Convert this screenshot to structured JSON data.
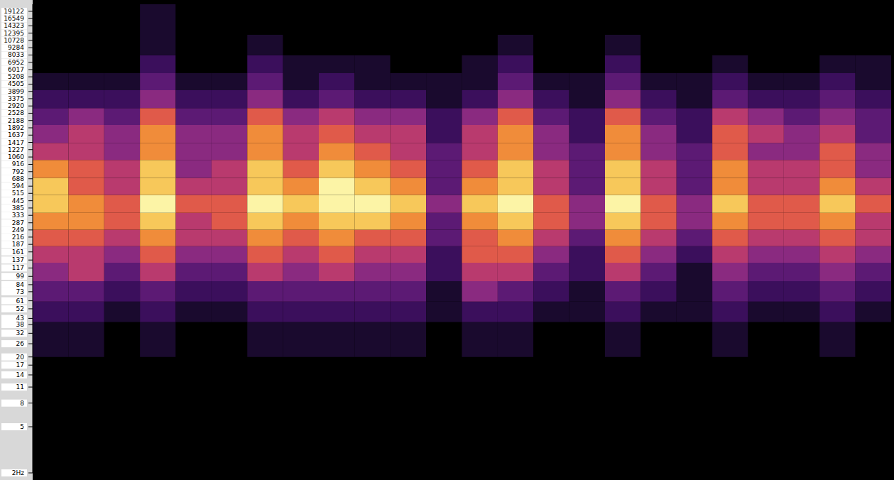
{
  "chart_data": {
    "type": "heatmap",
    "log": "y",
    "grid": false,
    "tick_labels": "y",
    "xlim": [
      0,
      24
    ],
    "ylim": [
      2,
      22000
    ],
    "yticks": [
      {
        "value": 19122,
        "label": "19122"
      },
      16549,
      14323,
      12395,
      10728,
      9284,
      8033,
      6952,
      6017,
      5208,
      4505,
      3899,
      3375,
      2920,
      2528,
      2188,
      1892,
      1637,
      1417,
      1227,
      1060,
      916,
      792,
      688,
      594,
      515,
      445,
      385,
      333,
      287,
      249,
      216,
      187,
      161,
      137,
      117,
      99,
      84,
      73,
      61,
      52,
      43,
      38,
      32,
      26,
      20,
      17,
      14,
      11,
      8,
      5,
      {
        "value": 2,
        "label": "2Hz"
      }
    ],
    "time_bins": [
      0,
      1,
      2,
      3,
      4,
      5,
      6,
      7,
      8,
      9,
      10,
      11,
      12,
      13,
      14,
      15,
      16,
      17,
      18,
      19,
      20,
      21,
      22,
      23,
      24
    ],
    "freq_bins": [
      20,
      40,
      60,
      90,
      130,
      180,
      250,
      350,
      500,
      700,
      1000,
      1400,
      2000,
      2800,
      4000,
      5600,
      8000,
      12000,
      22000
    ],
    "clim": [
      0,
      9
    ],
    "colorscale": [
      "#000000",
      "#1a0a2e",
      "#3b0f5c",
      "#5c1a74",
      "#8a2a80",
      "#b93a6e",
      "#e05a4a",
      "#f08c3a",
      "#f7c85a",
      "#fcf4a6"
    ],
    "cells": [
      [
        1,
        1,
        0,
        1,
        0,
        0,
        1,
        1,
        1,
        1,
        1,
        0,
        1,
        1,
        0,
        0,
        1,
        0,
        0,
        1,
        0,
        0,
        1,
        0
      ],
      [
        2,
        2,
        1,
        2,
        1,
        1,
        2,
        2,
        2,
        2,
        2,
        1,
        2,
        2,
        1,
        1,
        2,
        1,
        1,
        2,
        1,
        1,
        2,
        1
      ],
      [
        3,
        3,
        2,
        3,
        2,
        2,
        3,
        3,
        3,
        3,
        3,
        1,
        4,
        3,
        2,
        1,
        3,
        2,
        1,
        3,
        2,
        2,
        3,
        2
      ],
      [
        4,
        5,
        3,
        5,
        3,
        3,
        5,
        4,
        5,
        4,
        4,
        2,
        5,
        5,
        3,
        2,
        5,
        3,
        1,
        4,
        3,
        3,
        4,
        3
      ],
      [
        5,
        5,
        4,
        6,
        4,
        4,
        6,
        5,
        6,
        5,
        5,
        2,
        6,
        6,
        4,
        2,
        6,
        4,
        2,
        5,
        4,
        4,
        5,
        4
      ],
      [
        6,
        6,
        5,
        7,
        5,
        5,
        7,
        6,
        7,
        6,
        6,
        3,
        6,
        7,
        5,
        3,
        7,
        5,
        3,
        6,
        5,
        5,
        6,
        5
      ],
      [
        7,
        7,
        6,
        8,
        5,
        6,
        8,
        7,
        8,
        8,
        7,
        3,
        7,
        8,
        6,
        4,
        8,
        6,
        4,
        7,
        6,
        6,
        7,
        5
      ],
      [
        8,
        7,
        6,
        9,
        6,
        6,
        9,
        8,
        9,
        9,
        8,
        4,
        8,
        9,
        6,
        4,
        9,
        6,
        4,
        8,
        6,
        6,
        8,
        6
      ],
      [
        8,
        6,
        5,
        8,
        5,
        5,
        8,
        7,
        9,
        8,
        7,
        3,
        7,
        8,
        5,
        3,
        8,
        5,
        3,
        7,
        5,
        5,
        7,
        5
      ],
      [
        7,
        6,
        5,
        8,
        4,
        5,
        8,
        6,
        8,
        7,
        6,
        3,
        6,
        8,
        5,
        3,
        8,
        5,
        3,
        7,
        5,
        5,
        6,
        4
      ],
      [
        5,
        5,
        4,
        7,
        4,
        4,
        7,
        5,
        7,
        6,
        5,
        3,
        5,
        7,
        4,
        3,
        7,
        4,
        3,
        6,
        4,
        4,
        6,
        4
      ],
      [
        4,
        5,
        4,
        7,
        4,
        4,
        7,
        5,
        6,
        5,
        5,
        2,
        5,
        7,
        4,
        2,
        7,
        4,
        2,
        6,
        5,
        4,
        5,
        3
      ],
      [
        3,
        4,
        3,
        6,
        3,
        3,
        6,
        4,
        5,
        4,
        4,
        2,
        4,
        6,
        3,
        2,
        6,
        3,
        2,
        5,
        4,
        3,
        4,
        3
      ],
      [
        2,
        2,
        2,
        4,
        2,
        2,
        4,
        2,
        3,
        2,
        2,
        1,
        2,
        4,
        2,
        1,
        4,
        2,
        1,
        3,
        2,
        2,
        3,
        2
      ],
      [
        1,
        1,
        1,
        3,
        1,
        1,
        3,
        1,
        2,
        1,
        1,
        1,
        1,
        3,
        1,
        1,
        3,
        1,
        1,
        2,
        1,
        1,
        2,
        1
      ],
      [
        0,
        0,
        0,
        2,
        0,
        0,
        2,
        1,
        1,
        1,
        0,
        0,
        1,
        2,
        0,
        0,
        2,
        0,
        0,
        1,
        0,
        0,
        1,
        1
      ],
      [
        0,
        0,
        0,
        1,
        0,
        0,
        1,
        0,
        0,
        0,
        0,
        0,
        0,
        1,
        0,
        0,
        1,
        0,
        0,
        0,
        0,
        0,
        0,
        0
      ],
      [
        0,
        0,
        0,
        1,
        0,
        0,
        0,
        0,
        0,
        0,
        0,
        0,
        0,
        0,
        0,
        0,
        0,
        0,
        0,
        0,
        0,
        0,
        0,
        0
      ]
    ]
  }
}
